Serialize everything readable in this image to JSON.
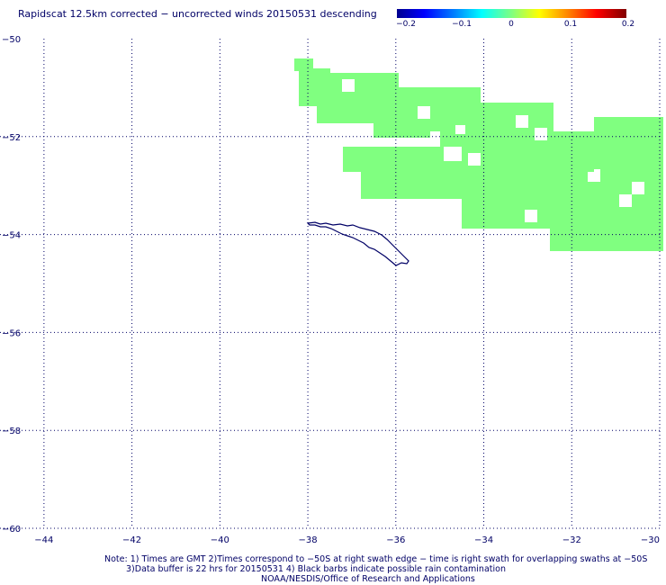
{
  "title": "Rapidscat 12.5km corrected − uncorrected winds 20150531 descending",
  "colorbar": {
    "ticks": [
      "−0.2",
      "−0.1",
      "0",
      "0.1",
      "0.2"
    ],
    "range": [
      -0.2,
      0.2
    ]
  },
  "map": {
    "lon_range": [
      -45,
      -30
    ],
    "lat_range": [
      -60,
      -50
    ],
    "lon_ticks": [
      "−44",
      "−42",
      "−40",
      "−38",
      "−36",
      "−34",
      "−32",
      "−30"
    ],
    "lat_ticks": [
      "−50",
      "−52",
      "−54",
      "−56",
      "−58",
      "−60"
    ],
    "swath_color": "#80ff80",
    "coast_color": "#000066",
    "grid_color": "#000066"
  },
  "notes": {
    "line1": "Note: 1) Times are GMT 2)Times correspond to −50S at right swath edge − time is right swath for overlapping swaths at −50S",
    "line2": "3)Data buffer is 22 hrs for 20150531 4) Black barbs indicate possible rain contamination",
    "line3": "NOAA/NESDIS/Office of Research and Applications"
  }
}
